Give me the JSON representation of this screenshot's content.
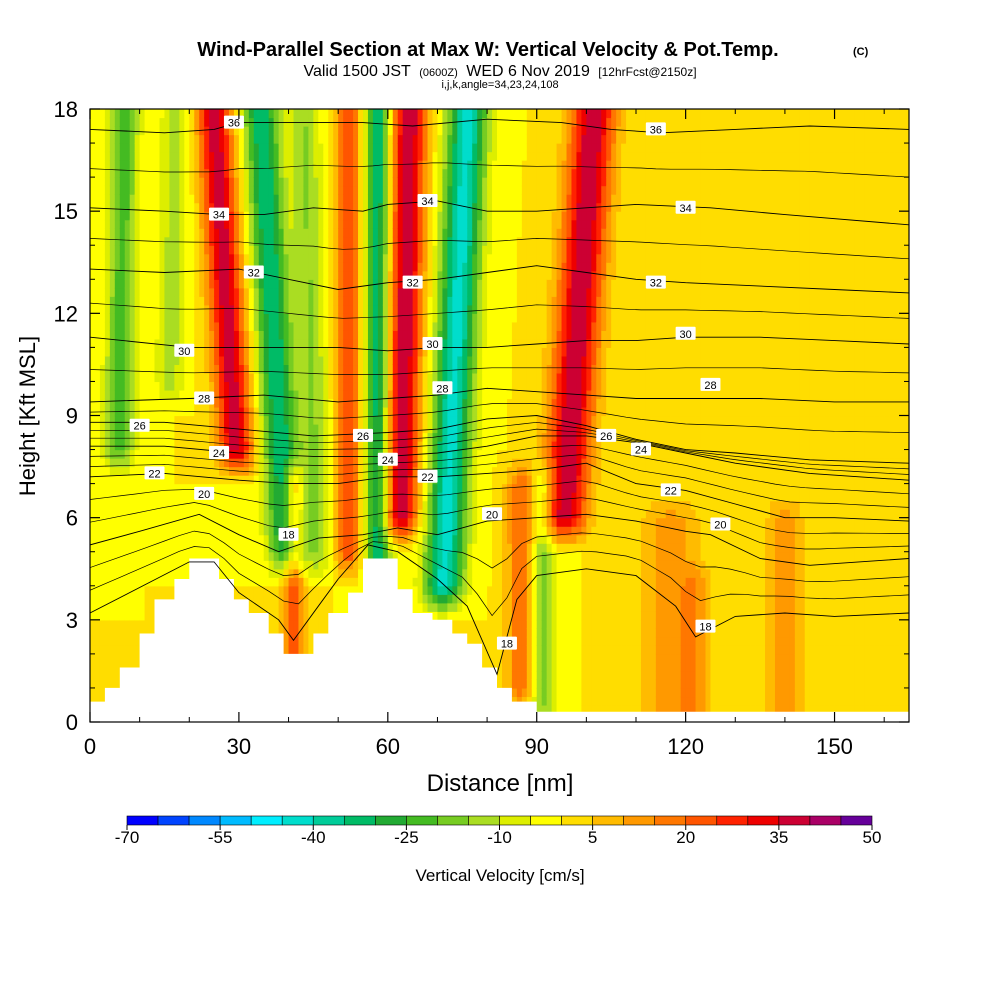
{
  "chart_data": {
    "type": "heatmap",
    "title": "Wind-Parallel Section at Max W: Vertical Velocity & Pot.Temp.",
    "title_mark": "(C)",
    "subtitle_parts": [
      "Valid 1500 JST",
      "(0600Z)",
      "WED 6 Nov 2019",
      "[12hrFcst@2150z]"
    ],
    "subtitle2": "i,j,k,angle=34,23,24,108",
    "xlabel": "Distance [nm]",
    "ylabel": "Height [Kft MSL]",
    "xlim": [
      0,
      165
    ],
    "ylim": [
      0,
      18
    ],
    "x_ticks": [
      0,
      30,
      60,
      90,
      120,
      150
    ],
    "y_ticks": [
      0,
      3,
      6,
      9,
      12,
      15,
      18
    ],
    "colorbar": {
      "label": "Vertical Velocity [cm/s]",
      "tick_labels": [
        "-70",
        "-55",
        "-40",
        "-25",
        "-10",
        "5",
        "20",
        "35",
        "50"
      ],
      "tick_values": [
        -70,
        -55,
        -40,
        -25,
        -10,
        5,
        20,
        35,
        50
      ],
      "bin_edges": [
        -70,
        -65,
        -60,
        -55,
        -50,
        -45,
        -40,
        -35,
        -30,
        -25,
        -20,
        -15,
        -10,
        -5,
        0,
        5,
        10,
        15,
        20,
        25,
        30,
        35,
        40,
        45,
        50
      ],
      "colors": [
        "#0000ff",
        "#0044ff",
        "#0088ff",
        "#00bbff",
        "#00eeff",
        "#00ddcc",
        "#00cc99",
        "#00bb66",
        "#22aa33",
        "#44bb22",
        "#77cc22",
        "#aadd22",
        "#ddee00",
        "#ffff00",
        "#ffdd00",
        "#ffbb00",
        "#ff9900",
        "#ff7700",
        "#ff5500",
        "#ff2200",
        "#ee0000",
        "#cc0033",
        "#aa0066",
        "#66009a"
      ]
    },
    "velocity_features": [
      {
        "x": 29,
        "w": 3.5,
        "tilt": -0.45,
        "amp": 38,
        "zmin": 8
      },
      {
        "x": 41,
        "w": 2,
        "tilt": 0,
        "amp": 24,
        "zmin": 1.5,
        "zmax": 7
      },
      {
        "x": 38,
        "w": 3.5,
        "tilt": -0.4,
        "amp": -35,
        "zmin": 5
      },
      {
        "x": 45,
        "w": 3,
        "tilt": -0.2,
        "amp": -15,
        "zmin": 5
      },
      {
        "x": 52,
        "w": 2.5,
        "tilt": 0,
        "amp": 25,
        "zmin": 5
      },
      {
        "x": 58,
        "w": 2.5,
        "tilt": 0,
        "amp": -35,
        "zmin": 3.5
      },
      {
        "x": 63,
        "w": 3.5,
        "tilt": 0.15,
        "amp": 40,
        "zmin": 6
      },
      {
        "x": 73,
        "w": 4,
        "tilt": 0.35,
        "amp": -42,
        "zmin": 4
      },
      {
        "x": 97,
        "w": 4.5,
        "tilt": 0.5,
        "amp": 40,
        "zmin": 6
      },
      {
        "x": 87,
        "w": 3,
        "tilt": 0,
        "amp": 20,
        "zmin": 1,
        "zmax": 7
      },
      {
        "x": 91,
        "w": 2.5,
        "tilt": 0,
        "amp": -18,
        "zmin": 0.5,
        "zmax": 7
      },
      {
        "x": 6,
        "w": 3,
        "tilt": 0.1,
        "amp": -22,
        "zmin": 8
      },
      {
        "x": 16,
        "w": 3,
        "tilt": 0.15,
        "amp": -12,
        "zmin": 10
      },
      {
        "x": 117,
        "w": 6,
        "tilt": 0,
        "amp": 12,
        "zmin": 0,
        "zmax": 6
      },
      {
        "x": 122,
        "w": 3,
        "tilt": 0,
        "amp": 10,
        "zmin": 0,
        "zmax": 4
      },
      {
        "x": 140,
        "w": 4,
        "tilt": 0,
        "amp": 12,
        "zmin": 0,
        "zmax": 6
      }
    ],
    "terrain": [
      [
        0,
        0.6
      ],
      [
        3,
        0.6
      ],
      [
        3,
        1
      ],
      [
        6,
        1
      ],
      [
        6,
        1.6
      ],
      [
        10,
        1.6
      ],
      [
        10,
        2.6
      ],
      [
        13,
        2.6
      ],
      [
        13,
        3.6
      ],
      [
        17,
        3.6
      ],
      [
        17,
        4.2
      ],
      [
        20,
        4.2
      ],
      [
        20,
        4.8
      ],
      [
        26,
        4.8
      ],
      [
        26,
        4.2
      ],
      [
        29,
        4.2
      ],
      [
        29,
        3.6
      ],
      [
        32,
        3.6
      ],
      [
        32,
        3.2
      ],
      [
        36,
        3.2
      ],
      [
        36,
        2.6
      ],
      [
        39,
        2.6
      ],
      [
        39,
        2.0
      ],
      [
        41,
        2.0
      ],
      [
        41,
        2.0
      ],
      [
        45,
        2.0
      ],
      [
        45,
        2.6
      ],
      [
        48,
        2.6
      ],
      [
        48,
        3.2
      ],
      [
        52,
        3.2
      ],
      [
        52,
        3.8
      ],
      [
        55,
        3.8
      ],
      [
        55,
        4.8
      ],
      [
        62,
        4.8
      ],
      [
        62,
        3.9
      ],
      [
        65,
        3.9
      ],
      [
        65,
        3.2
      ],
      [
        69,
        3.2
      ],
      [
        69,
        3.0
      ],
      [
        73,
        3.0
      ],
      [
        73,
        2.6
      ],
      [
        76,
        2.6
      ],
      [
        76,
        2.3
      ],
      [
        79,
        2.3
      ],
      [
        79,
        1.6
      ],
      [
        82,
        1.6
      ],
      [
        82,
        1.0
      ],
      [
        85,
        1.0
      ],
      [
        85,
        0.6
      ],
      [
        90,
        0.6
      ],
      [
        90,
        0.3
      ],
      [
        165,
        0.3
      ]
    ],
    "theta_contours": [
      {
        "level": 18,
        "label": "18",
        "pts": [
          [
            0,
            3.2
          ],
          [
            20,
            4.7
          ],
          [
            25,
            4.7
          ],
          [
            30,
            3.8
          ],
          [
            38,
            3.0
          ],
          [
            41,
            2.4
          ],
          [
            46,
            3.4
          ],
          [
            50,
            4.2
          ],
          [
            56,
            5.2
          ],
          [
            62,
            5.0
          ],
          [
            70,
            4.2
          ],
          [
            76,
            3.4
          ],
          [
            82,
            1.4
          ],
          [
            86,
            3.6
          ],
          [
            90,
            4.3
          ],
          [
            100,
            4.5
          ],
          [
            110,
            4.3
          ],
          [
            118,
            3.4
          ],
          [
            122,
            2.5
          ],
          [
            130,
            3.1
          ],
          [
            140,
            3.2
          ],
          [
            150,
            3.1
          ],
          [
            165,
            3.2
          ]
        ],
        "labels": [
          [
            40,
            5.5
          ],
          [
            84,
            2.3
          ],
          [
            124,
            2.8
          ]
        ]
      },
      {
        "level": 20,
        "label": "20",
        "pts": [
          [
            0,
            5.2
          ],
          [
            10,
            5.6
          ],
          [
            22,
            6.1
          ],
          [
            30,
            5.5
          ],
          [
            38,
            5.0
          ],
          [
            46,
            5.4
          ],
          [
            55,
            5.5
          ],
          [
            62,
            5.7
          ],
          [
            70,
            5.5
          ],
          [
            80,
            5.9
          ],
          [
            90,
            6.0
          ],
          [
            100,
            6.1
          ],
          [
            110,
            5.9
          ],
          [
            120,
            5.6
          ],
          [
            125,
            5.5
          ],
          [
            135,
            4.8
          ],
          [
            145,
            4.6
          ],
          [
            165,
            4.8
          ]
        ],
        "labels": [
          [
            23,
            6.7
          ],
          [
            81,
            6.1
          ],
          [
            127,
            5.8
          ]
        ]
      },
      {
        "level": 22,
        "label": "22",
        "pts": [
          [
            0,
            7.2
          ],
          [
            15,
            7.3
          ],
          [
            30,
            7.1
          ],
          [
            40,
            7.0
          ],
          [
            50,
            7.0
          ],
          [
            60,
            7.2
          ],
          [
            70,
            7.2
          ],
          [
            80,
            7.3
          ],
          [
            90,
            7.4
          ],
          [
            100,
            7.6
          ],
          [
            110,
            7.0
          ],
          [
            120,
            6.8
          ],
          [
            130,
            6.4
          ],
          [
            140,
            6.0
          ],
          [
            150,
            6.0
          ],
          [
            165,
            5.9
          ]
        ],
        "labels": [
          [
            13,
            7.3
          ],
          [
            68,
            7.2
          ],
          [
            117,
            6.8
          ]
        ]
      },
      {
        "level": 24,
        "label": "24",
        "pts": [
          [
            0,
            8.1
          ],
          [
            15,
            8.1
          ],
          [
            30,
            7.9
          ],
          [
            45,
            7.8
          ],
          [
            60,
            7.8
          ],
          [
            70,
            7.9
          ],
          [
            80,
            8.1
          ],
          [
            90,
            8.4
          ],
          [
            100,
            8.4
          ],
          [
            110,
            8.2
          ],
          [
            120,
            7.9
          ],
          [
            130,
            7.6
          ],
          [
            145,
            7.3
          ],
          [
            165,
            7.1
          ]
        ],
        "labels": [
          [
            26,
            7.9
          ],
          [
            60,
            7.7
          ],
          [
            111,
            8.0
          ]
        ]
      },
      {
        "level": 26,
        "label": "26",
        "pts": [
          [
            0,
            8.8
          ],
          [
            15,
            8.8
          ],
          [
            30,
            8.6
          ],
          [
            45,
            8.4
          ],
          [
            60,
            8.5
          ],
          [
            70,
            8.6
          ],
          [
            80,
            8.9
          ],
          [
            90,
            9.0
          ],
          [
            100,
            8.7
          ],
          [
            110,
            8.3
          ],
          [
            120,
            8.0
          ],
          [
            130,
            7.9
          ],
          [
            145,
            7.7
          ],
          [
            165,
            7.6
          ]
        ],
        "labels": [
          [
            10,
            8.7
          ],
          [
            55,
            8.4
          ],
          [
            104,
            8.4
          ]
        ]
      },
      {
        "level": 28,
        "label": "28",
        "pts": [
          [
            0,
            9.4
          ],
          [
            20,
            9.5
          ],
          [
            35,
            9.6
          ],
          [
            50,
            9.4
          ],
          [
            60,
            9.5
          ],
          [
            70,
            9.6
          ],
          [
            80,
            9.8
          ],
          [
            90,
            9.7
          ],
          [
            100,
            9.6
          ],
          [
            110,
            9.5
          ],
          [
            120,
            9.5
          ],
          [
            135,
            9.5
          ],
          [
            150,
            9.4
          ],
          [
            165,
            9.4
          ]
        ],
        "labels": [
          [
            23,
            9.5
          ],
          [
            71,
            9.8
          ],
          [
            125,
            9.9
          ]
        ]
      },
      {
        "level": 30,
        "label": "30",
        "pts": [
          [
            0,
            11.3
          ],
          [
            20,
            11.0
          ],
          [
            35,
            11.0
          ],
          [
            50,
            11.0
          ],
          [
            60,
            10.9
          ],
          [
            70,
            11.0
          ],
          [
            80,
            11.0
          ],
          [
            90,
            11.1
          ],
          [
            100,
            11.2
          ],
          [
            110,
            11.2
          ],
          [
            120,
            11.3
          ],
          [
            135,
            11.3
          ],
          [
            150,
            11.2
          ],
          [
            165,
            11.1
          ]
        ],
        "labels": [
          [
            19,
            10.9
          ],
          [
            69,
            11.1
          ],
          [
            120,
            11.4
          ]
        ]
      },
      {
        "level": 32,
        "label": "32",
        "pts": [
          [
            0,
            13.3
          ],
          [
            15,
            13.2
          ],
          [
            30,
            13.3
          ],
          [
            40,
            13.0
          ],
          [
            50,
            12.7
          ],
          [
            60,
            12.9
          ],
          [
            70,
            13.0
          ],
          [
            80,
            13.2
          ],
          [
            90,
            13.4
          ],
          [
            100,
            13.2
          ],
          [
            110,
            13.0
          ],
          [
            120,
            12.9
          ],
          [
            135,
            12.8
          ],
          [
            150,
            12.7
          ],
          [
            165,
            12.6
          ]
        ],
        "labels": [
          [
            33,
            13.2
          ],
          [
            65,
            12.9
          ],
          [
            114,
            12.9
          ]
        ]
      },
      {
        "level": 34,
        "label": "34",
        "pts": [
          [
            0,
            15.1
          ],
          [
            15,
            15.0
          ],
          [
            26,
            14.9
          ],
          [
            35,
            14.9
          ],
          [
            45,
            15.1
          ],
          [
            55,
            15.0
          ],
          [
            60,
            15.2
          ],
          [
            70,
            15.3
          ],
          [
            80,
            15.0
          ],
          [
            90,
            15.0
          ],
          [
            100,
            15.1
          ],
          [
            110,
            15.2
          ],
          [
            125,
            15.1
          ],
          [
            140,
            14.9
          ],
          [
            165,
            14.6
          ]
        ],
        "labels": [
          [
            26,
            14.9
          ],
          [
            68,
            15.3
          ],
          [
            120,
            15.1
          ]
        ]
      },
      {
        "level": 36,
        "label": "36",
        "pts": [
          [
            0,
            17.4
          ],
          [
            15,
            17.3
          ],
          [
            25,
            17.4
          ],
          [
            30,
            17.6
          ],
          [
            40,
            17.6
          ],
          [
            55,
            17.6
          ],
          [
            65,
            17.5
          ],
          [
            80,
            17.7
          ],
          [
            95,
            17.6
          ],
          [
            105,
            17.4
          ],
          [
            115,
            17.3
          ],
          [
            130,
            17.4
          ],
          [
            145,
            17.5
          ],
          [
            165,
            17.4
          ]
        ],
        "labels": [
          [
            29,
            17.6
          ],
          [
            114,
            17.4
          ]
        ]
      }
    ],
    "thin_contours_count": 22
  }
}
